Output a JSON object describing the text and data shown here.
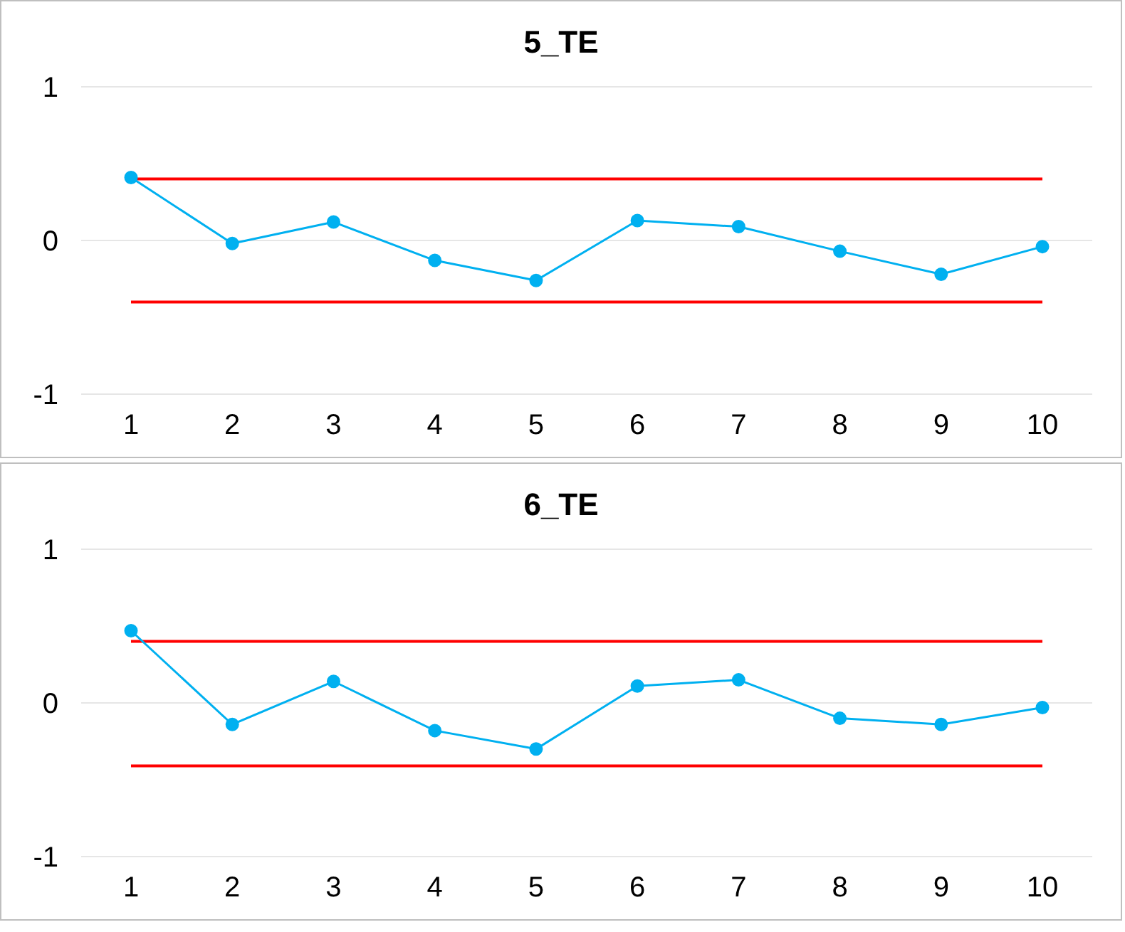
{
  "chart_data": [
    {
      "type": "line",
      "title": "5_TE",
      "categories": [
        "1",
        "2",
        "3",
        "4",
        "5",
        "6",
        "7",
        "8",
        "9",
        "10"
      ],
      "series": [
        {
          "color": "#00b0f0",
          "values": [
            0.41,
            -0.02,
            0.12,
            -0.13,
            -0.26,
            0.13,
            0.09,
            -0.07,
            -0.22,
            -0.04
          ]
        }
      ],
      "ylim": [
        -1,
        1
      ],
      "yticks": [
        -1,
        0,
        1
      ],
      "grid": "y",
      "marker": "circle",
      "legend": false,
      "ref_lines": [
        {
          "axis": "y",
          "value": 0.4,
          "color": "#ff0000"
        },
        {
          "axis": "y",
          "value": -0.4,
          "color": "#ff0000"
        }
      ]
    },
    {
      "type": "line",
      "title": "6_TE",
      "categories": [
        "1",
        "2",
        "3",
        "4",
        "5",
        "6",
        "7",
        "8",
        "9",
        "10"
      ],
      "series": [
        {
          "color": "#00b0f0",
          "values": [
            0.47,
            -0.14,
            0.14,
            -0.18,
            -0.3,
            0.11,
            0.15,
            -0.1,
            -0.14,
            -0.03
          ]
        }
      ],
      "ylim": [
        -1,
        1
      ],
      "yticks": [
        -1,
        0,
        1
      ],
      "grid": "y",
      "marker": "circle",
      "legend": false,
      "ref_lines": [
        {
          "axis": "y",
          "value": 0.4,
          "color": "#ff0000"
        },
        {
          "axis": "y",
          "value": -0.41,
          "color": "#ff0000"
        }
      ]
    }
  ]
}
